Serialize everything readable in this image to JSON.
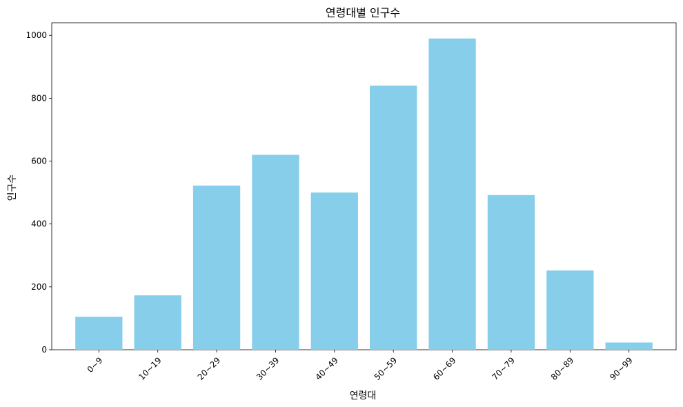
{
  "chart_data": {
    "type": "bar",
    "title": "연령대별 인구수",
    "xlabel": "연령대",
    "ylabel": "인구수",
    "categories": [
      "0~9",
      "10~19",
      "20~29",
      "30~39",
      "40~49",
      "50~59",
      "60~69",
      "70~79",
      "80~89",
      "90~99"
    ],
    "values": [
      105,
      173,
      522,
      620,
      500,
      840,
      990,
      492,
      252,
      23
    ],
    "ylim": [
      0,
      1040
    ],
    "yticks": [
      0,
      200,
      400,
      600,
      800,
      1000
    ],
    "grid": false,
    "bar_color": "#87CEEB",
    "legend": null
  }
}
